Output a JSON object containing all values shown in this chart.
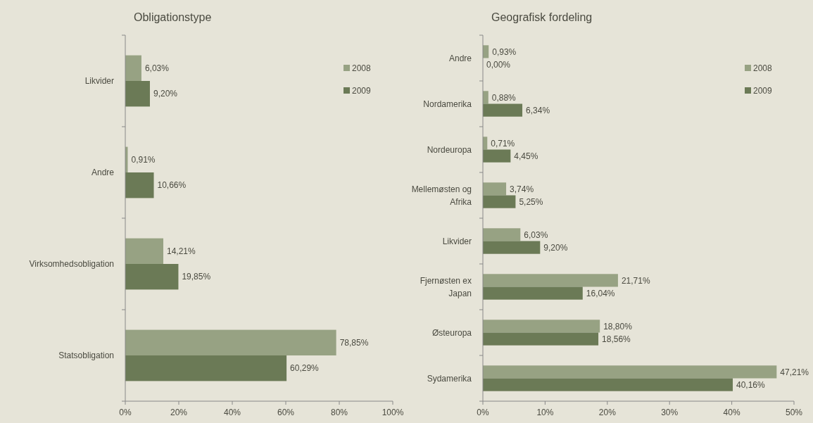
{
  "chart_data": [
    {
      "type": "bar",
      "title": "Obligationstype",
      "orientation": "horizontal",
      "categories": [
        "Likvider",
        "Andre",
        "Virksomhedsobligation",
        "Statsobligation"
      ],
      "xlim": [
        0,
        100
      ],
      "xticks": [
        {
          "value": 0,
          "label": "0%"
        },
        {
          "value": 20,
          "label": "20%"
        },
        {
          "value": 40,
          "label": "40%"
        },
        {
          "value": 60,
          "label": "60%"
        },
        {
          "value": 80,
          "label": "80%"
        },
        {
          "value": 100,
          "label": "100%"
        }
      ],
      "grid": false,
      "legend": "top right",
      "series": [
        {
          "name": "2008",
          "color": "#97a283",
          "values": [
            6.03,
            0.91,
            14.21,
            78.85
          ],
          "value_labels": [
            "6,03%",
            "0,91%",
            "14,21%",
            "78,85%"
          ]
        },
        {
          "name": "2009",
          "color": "#6b7a56",
          "values": [
            9.2,
            10.66,
            19.85,
            60.29
          ],
          "value_labels": [
            "9,20%",
            "10,66%",
            "19,85%",
            "60,29%"
          ]
        }
      ]
    },
    {
      "type": "bar",
      "title": "Geografisk fordeling",
      "orientation": "horizontal",
      "categories": [
        "Andre",
        "Nordamerika",
        "Nordeuropa",
        "Mellemøsten og Afrika",
        "Likvider",
        "Fjernøsten ex Japan",
        "Østeuropa",
        "Sydamerika"
      ],
      "xlim": [
        0,
        50
      ],
      "xticks": [
        {
          "value": 0,
          "label": "0%"
        },
        {
          "value": 10,
          "label": "10%"
        },
        {
          "value": 20,
          "label": "20%"
        },
        {
          "value": 30,
          "label": "30%"
        },
        {
          "value": 40,
          "label": "40%"
        },
        {
          "value": 50,
          "label": "50%"
        }
      ],
      "grid": false,
      "legend": "top right",
      "series": [
        {
          "name": "2008",
          "color": "#97a283",
          "values": [
            0.93,
            0.88,
            0.71,
            3.74,
            6.03,
            21.71,
            18.8,
            47.21
          ],
          "value_labels": [
            "0,93%",
            "0,88%",
            "0,71%",
            "3,74%",
            "6,03%",
            "21,71%",
            "18,80%",
            "47,21%"
          ]
        },
        {
          "name": "2009",
          "color": "#6b7a56",
          "values": [
            0,
            6.34,
            4.45,
            5.25,
            9.2,
            16.04,
            18.56,
            40.16
          ],
          "value_labels": [
            "0,00%",
            "6,34%",
            "4,45%",
            "5,25%",
            "9,20%",
            "16,04%",
            "18,56%",
            "40,16%"
          ]
        }
      ]
    }
  ]
}
